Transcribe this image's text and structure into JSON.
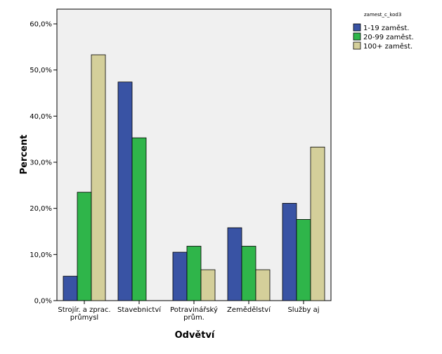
{
  "chart_data": {
    "type": "bar",
    "xlabel": "Odvětví",
    "ylabel": "Percent",
    "ylim": [
      0,
      60
    ],
    "yticks": [
      "0,0%",
      "10,0%",
      "20,0%",
      "30,0%",
      "40,0%",
      "50,0%",
      "60,0%"
    ],
    "categories": [
      [
        "Strojír. a zprac.",
        "průmysl"
      ],
      [
        "Stavebnictví"
      ],
      [
        "Potravinářský",
        "prům."
      ],
      [
        "Zemědělství"
      ],
      [
        "Služby aj"
      ]
    ],
    "legend": {
      "title": "zamest_c_kod3",
      "placement": "right"
    },
    "series": [
      {
        "name": "1-19 zaměst.",
        "color": "#3953a4",
        "values": [
          5.3,
          47.4,
          10.5,
          15.8,
          21.1
        ]
      },
      {
        "name": "20-99 zaměst.",
        "color": "#2fb54a",
        "values": [
          23.5,
          35.3,
          11.8,
          11.8,
          17.6
        ]
      },
      {
        "name": "100+ zaměst.",
        "color": "#d4cf9a",
        "values": [
          53.3,
          0,
          6.7,
          6.7,
          33.3
        ]
      }
    ]
  }
}
